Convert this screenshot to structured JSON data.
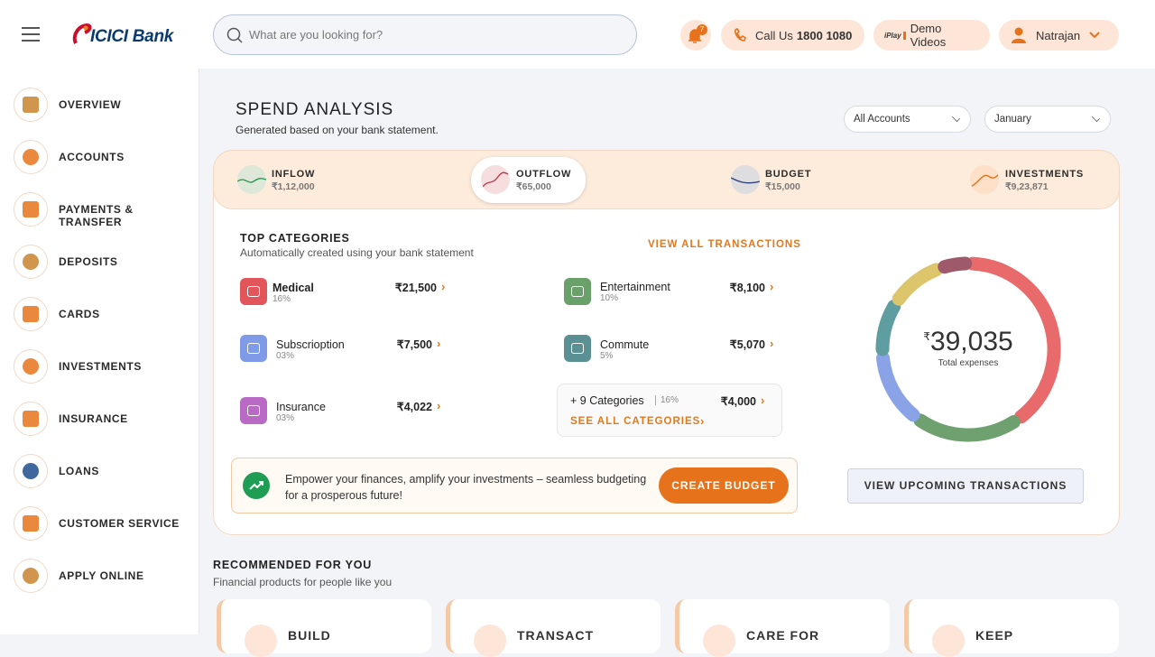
{
  "header": {
    "logo": "ICICI Bank",
    "search_placeholder": "What are you looking for?",
    "notification_count": "7",
    "call_label": "Call Us",
    "call_number": "1800 1080",
    "demo_badge": "iPlay",
    "demo_label": "Demo Videos",
    "user_name": "Natrajan"
  },
  "sidebar": [
    "OVERVIEW",
    "ACCOUNTS",
    "PAYMENTS & TRANSFER",
    "DEPOSITS",
    "CARDS",
    "INVESTMENTS",
    "INSURANCE",
    "LOANS",
    "CUSTOMER SERVICE",
    "APPLY ONLINE"
  ],
  "spend": {
    "title": "SPEND ANALYSIS",
    "subtitle": "Generated based on your bank statement.",
    "filters": [
      "All Accounts",
      "January"
    ],
    "tabs": [
      {
        "label": "INFLOW",
        "amount": "₹1,12,000"
      },
      {
        "label": "OUTFLOW",
        "amount": "₹65,000"
      },
      {
        "label": "BUDGET",
        "amount": "₹15,000"
      },
      {
        "label": "INVESTMENTS",
        "amount": "₹9,23,871"
      }
    ],
    "top_categories": {
      "title": "TOP CATEGORIES",
      "subtitle": "Automatically created using your bank statement",
      "view_all": "VIEW ALL TRANSACTIONS",
      "items": [
        {
          "name": "Medical",
          "percent": "16%",
          "amount": "₹21,500"
        },
        {
          "name": "Entertainment",
          "percent": "10%",
          "amount": "₹8,100"
        },
        {
          "name": "Subscrioption",
          "percent": "03%",
          "amount": "₹7,500"
        },
        {
          "name": "Commute",
          "percent": "5%",
          "amount": "₹5,070"
        },
        {
          "name": "Insurance",
          "percent": "03%",
          "amount": "₹4,022"
        }
      ],
      "more": {
        "label": "+ 9 Categories",
        "percent": "16%",
        "amount": "₹4,000",
        "link": "SEE ALL CATEGORIES"
      }
    },
    "banner": {
      "text": "Empower your finances, amplify your investments – seamless budgeting for a prosperous future!",
      "button": "CREATE BUDGET"
    },
    "donut": {
      "currency": "₹",
      "amount": "39,035",
      "label": "Total expenses"
    },
    "upcoming_button": "VIEW UPCOMING TRANSACTIONS"
  },
  "recommended": {
    "title": "RECOMMENDED FOR YOU",
    "subtitle": "Financial products for people like you",
    "cards": [
      "BUILD",
      "TRANSACT",
      "CARE FOR",
      "KEEP"
    ]
  }
}
